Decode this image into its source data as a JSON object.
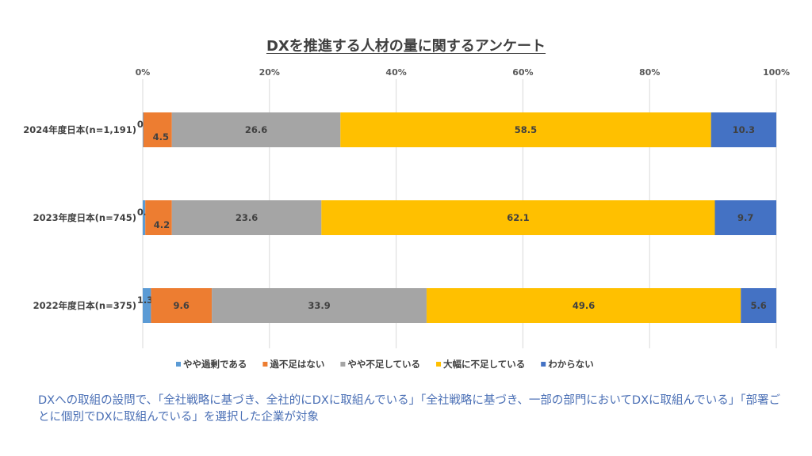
{
  "chart_data": {
    "type": "bar",
    "orientation": "horizontal",
    "stacked": "percent",
    "title": "DXを推進する人材の量に関するアンケート",
    "categories": [
      "2024年度日本(n=1,191)",
      "2023年度日本(n=745)",
      "2022年度日本(n=375)"
    ],
    "series": [
      {
        "name": "やや過剰である",
        "color": "#5b9bd5",
        "values": [
          0.1,
          0.4,
          1.3
        ]
      },
      {
        "name": "過不足はない",
        "color": "#ed7d31",
        "values": [
          4.5,
          4.2,
          9.6
        ]
      },
      {
        "name": "やや不足している",
        "color": "#a5a5a5",
        "values": [
          26.6,
          23.6,
          33.9
        ]
      },
      {
        "name": "大幅に不足している",
        "color": "#ffc000",
        "values": [
          58.5,
          62.1,
          49.6
        ]
      },
      {
        "name": "わからない",
        "color": "#4472c4",
        "values": [
          10.3,
          9.7,
          5.6
        ]
      }
    ],
    "xticks": [
      "0%",
      "20%",
      "40%",
      "60%",
      "80%",
      "100%"
    ],
    "xlim": [
      0,
      100
    ],
    "grid": true,
    "legend": "bottom"
  },
  "note": "DXへの取組の設問で、「全社戦略に基づき、全社的にDXに取組んでいる」「全社戦略に基づき、一部の部門においてDXに取組んでいる」「部署ごとに個別でDXに取組んでいる」を選択した企業が対象"
}
